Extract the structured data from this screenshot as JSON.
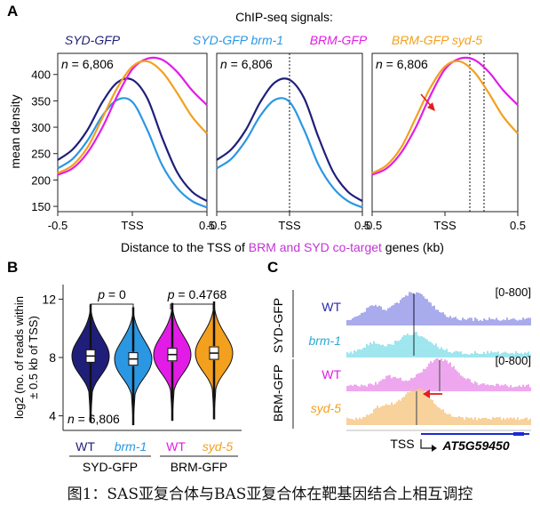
{
  "panel_labels": {
    "a": "A",
    "b": "B",
    "c": "C"
  },
  "panel_a": {
    "title": "ChIP-seq signals:",
    "legend": [
      {
        "label": "SYD-GFP",
        "color": "#1f1f7a"
      },
      {
        "label": "SYD-GFP brm-1",
        "color": "#2b97e3"
      },
      {
        "label": "BRM-GFP",
        "color": "#e21ce6"
      },
      {
        "label": "BRM-GFP syd-5",
        "color": "#f3a01e"
      }
    ],
    "ylabel": "mean density",
    "xlabel_pre": "Distance to the TSS of ",
    "xlabel_mid": "BRM and SYD co-target",
    "xlabel_post": " genes (kb)",
    "n_label": "n = 6,806",
    "x_ticks": [
      "-0.5",
      "TSS",
      "0.5"
    ],
    "y_ticks": [
      "150",
      "200",
      "250",
      "300",
      "350",
      "400"
    ]
  },
  "panel_b": {
    "ylabel_line1": "log2 (no. of reads within",
    "ylabel_line2": "± 0.5 kb of TSS)",
    "y_ticks": [
      "4",
      "8",
      "12"
    ],
    "pvalue_1": "p = 0",
    "pvalue_2": "p = 0.4768",
    "n_label": "n = 6,806",
    "categories": [
      "WT",
      "brm-1",
      "WT",
      "syd-5"
    ],
    "group_labels": [
      "SYD-GFP",
      "BRM-GFP"
    ]
  },
  "panel_c": {
    "row_labels": [
      "WT",
      "brm-1",
      "WT",
      "syd-5"
    ],
    "group_labels": [
      "SYD-GFP",
      "BRM-GFP"
    ],
    "range_label": "[0-800]",
    "tss_label": "TSS",
    "gene_label": "AT5G59450"
  },
  "chart_data": [
    {
      "type": "line",
      "title": "ChIP-seq signals:",
      "xlabel": "Distance to the TSS of BRM and SYD co-target genes (kb)",
      "ylabel": "mean density",
      "xlim": [
        -0.5,
        0.5
      ],
      "ylim": [
        140,
        440
      ],
      "x": [
        -0.5,
        -0.4,
        -0.3,
        -0.2,
        -0.1,
        0.0,
        0.1,
        0.2,
        0.3,
        0.4,
        0.5
      ],
      "panels": [
        {
          "n_label": "n = 6,806",
          "series": [
            {
              "name": "SYD-GFP",
              "values": [
                238,
                258,
                295,
                348,
                385,
                390,
                355,
                280,
                215,
                178,
                160
              ]
            },
            {
              "name": "SYD-GFP brm-1",
              "values": [
                222,
                240,
                275,
                322,
                352,
                348,
                295,
                228,
                185,
                160,
                148
              ]
            },
            {
              "name": "BRM-GFP",
              "values": [
                210,
                222,
                252,
                300,
                360,
                410,
                430,
                428,
                405,
                370,
                342
              ]
            },
            {
              "name": "BRM-GFP syd-5",
              "values": [
                213,
                228,
                262,
                318,
                375,
                415,
                425,
                405,
                365,
                320,
                288
              ]
            }
          ]
        },
        {
          "n_label": "n = 6,806",
          "series": [
            {
              "name": "SYD-GFP",
              "values": [
                238,
                258,
                295,
                348,
                385,
                390,
                355,
                280,
                215,
                178,
                160
              ]
            },
            {
              "name": "SYD-GFP brm-1",
              "values": [
                222,
                240,
                275,
                322,
                352,
                348,
                295,
                228,
                185,
                160,
                148
              ]
            }
          ]
        },
        {
          "n_label": "n = 6,806",
          "series": [
            {
              "name": "BRM-GFP",
              "values": [
                210,
                222,
                252,
                300,
                360,
                410,
                430,
                428,
                405,
                370,
                342
              ]
            },
            {
              "name": "BRM-GFP syd-5",
              "values": [
                213,
                228,
                262,
                318,
                375,
                415,
                425,
                405,
                365,
                320,
                288
              ]
            }
          ]
        }
      ]
    },
    {
      "type": "violin",
      "ylabel": "log2 (no. of reads within ± 0.5 kb of TSS)",
      "ylim": [
        3,
        13
      ],
      "categories": [
        "WT",
        "brm-1",
        "WT",
        "syd-5"
      ],
      "groups": [
        "SYD-GFP",
        "SYD-GFP",
        "BRM-GFP",
        "BRM-GFP"
      ],
      "medians": [
        8.1,
        7.9,
        8.2,
        8.3
      ],
      "comparisons": [
        {
          "pair": [
            "WT",
            "brm-1"
          ],
          "p": "0"
        },
        {
          "pair": [
            "WT",
            "syd-5"
          ],
          "p": "0.4768"
        }
      ]
    }
  ],
  "caption": "图1：SAS亚复合体与BAS亚复合体在靶基因结合上相互调控"
}
